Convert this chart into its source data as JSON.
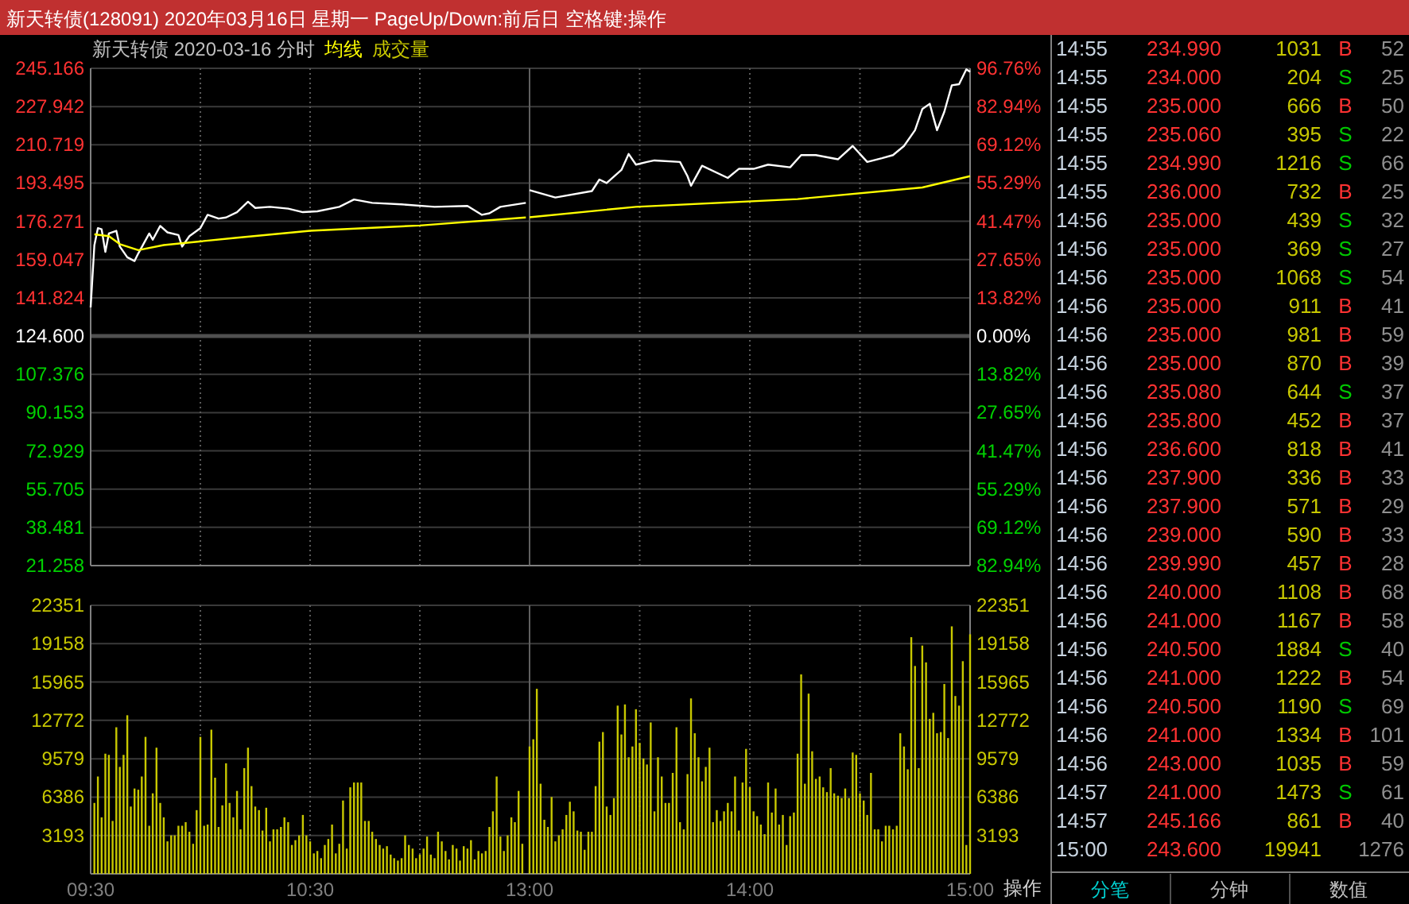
{
  "chart_data": [
    {
      "type": "line",
      "title": "新天转债(128091) 2020年03月16日 星期一 PageUp/Down:前后日 空格键:操作",
      "subtitle": "新天转债  2020-03-16 分时",
      "legend": "top right",
      "grid": true,
      "tick_labels": "y",
      "xlim": [
        9.5,
        11.5
      ],
      "xticks": [
        9.5,
        10,
        10.5,
        11
      ],
      "ylim": [
        21.258,
        245.166
      ],
      "yticks": [
        245.166,
        227.942,
        210.719,
        193.495,
        176.271,
        159.047,
        141.824,
        {
          "value": 124.6,
          "label": "124.600"
        },
        107.376,
        90.153,
        72.929,
        55.705,
        38.481,
        21.258
      ],
      "ref_lines": [
        {
          "axis": "y",
          "value": 124.6
        }
      ],
      "series": [
        {
          "color": "#ffffff",
          "x": [
            9.5,
            9.517,
            9.533,
            9.55,
            9.567,
            9.583,
            9.617,
            9.633,
            9.667,
            9.7,
            9.717,
            9.767,
            9.783,
            9.817,
            9.85,
            9.9,
            9.917,
            9.95,
            10,
            10.033,
            10.083,
            10.117,
            10.167,
            10.217,
            10.25,
            10.317,
            10.4,
            10.467,
            10.533,
            10.633,
            10.7,
            10.783,
            10.917,
            11.067,
            11.217,
            11.283,
            11.317,
            11.367,
            11.483
          ],
          "values": [
            137.5,
            165.5,
            173.2,
            172.7,
            162.5,
            170.8,
            172.0,
            164.9,
            160.1,
            158.4,
            161.8,
            170.8,
            168.0,
            174.2,
            171.3,
            170.1,
            164.9,
            169.6,
            173.2,
            179.2,
            177.5,
            178.0,
            180.4,
            185.1,
            182.3,
            182.8,
            182.0,
            180.4,
            180.8,
            182.8,
            186.1,
            184.6,
            183.9,
            182.8,
            183.2,
            179.2,
            179.9,
            182.8,
            184.6
          ]
        },
        {
          "name": "均线",
          "color": "#ffff00",
          "x": [
            9.517,
            9.583,
            9.633,
            9.717,
            9.833,
            10.167,
            10.5,
            11,
            11.483
          ],
          "values": [
            170.4,
            169.6,
            166.0,
            163.3,
            165.6,
            168.9,
            172.0,
            174.4,
            178.0
          ]
        }
      ]
    },
    {
      "type": "line",
      "grid": true,
      "tick_labels": false,
      "xlim": [
        13,
        15
      ],
      "xticks": [
        13,
        13.5,
        14,
        14.5,
        15
      ],
      "ylim": [
        21.258,
        245.166
      ],
      "yticks": [
        245.166,
        227.942,
        210.719,
        193.495,
        176.271,
        159.047,
        141.824,
        124.6,
        107.376,
        90.153,
        72.929,
        55.705,
        38.481,
        21.258
      ],
      "y2lim": [
        -82.94,
        96.76
      ],
      "y2ticks": [
        {
          "value": 96.76,
          "label": "96.76%"
        },
        {
          "value": 82.94,
          "label": "82.94%"
        },
        {
          "value": 69.12,
          "label": "69.12%"
        },
        {
          "value": 55.29,
          "label": "55.29%"
        },
        {
          "value": 41.47,
          "label": "41.47%"
        },
        {
          "value": 27.65,
          "label": "27.65%"
        },
        {
          "value": 13.82,
          "label": "13.82%"
        },
        {
          "value": 0,
          "label": "0.00%"
        },
        {
          "value": -13.82,
          "label": "13.82%"
        },
        {
          "value": -27.65,
          "label": "27.65%"
        },
        {
          "value": -41.47,
          "label": "41.47%"
        },
        {
          "value": -55.29,
          "label": "55.29%"
        },
        {
          "value": -69.12,
          "label": "69.12%"
        },
        {
          "value": -82.94,
          "label": "82.94%"
        }
      ],
      "ref_lines": [
        {
          "axis": "y",
          "value": 124.6
        }
      ],
      "series": [
        {
          "color": "#ffffff",
          "x": [
            13,
            13.117,
            13.283,
            13.317,
            13.35,
            13.417,
            13.45,
            13.483,
            13.533,
            13.567,
            13.683,
            13.717,
            13.733,
            13.783,
            13.9,
            13.95,
            14.017,
            14.083,
            14.183,
            14.233,
            14.3,
            14.4,
            14.467,
            14.533,
            14.6,
            14.65,
            14.7,
            14.75,
            14.783,
            14.817,
            14.833,
            14.85,
            14.883,
            14.917,
            14.95,
            14.983,
            15
          ],
          "values": [
            190.3,
            187.0,
            189.9,
            195.1,
            193.5,
            199.4,
            206.6,
            201.8,
            203.0,
            203.7,
            203.0,
            196.6,
            192.3,
            201.3,
            195.8,
            199.9,
            199.9,
            201.8,
            200.6,
            206.1,
            206.1,
            204.2,
            210.2,
            203.0,
            204.7,
            206.1,
            210.2,
            217.3,
            226.8,
            229.2,
            223.3,
            217.3,
            225.6,
            237.5,
            238.0,
            244.7,
            243.6
          ]
        },
        {
          "color": "#ffff00",
          "x": [
            13,
            13.483,
            14.217,
            14.783,
            15
          ],
          "values": [
            178.1,
            182.8,
            186.3,
            191.5,
            196.6
          ]
        }
      ]
    },
    {
      "type": "bar",
      "legend": "top right",
      "grid": true,
      "xlim": [
        9.5,
        11.5
      ],
      "xticks": [
        {
          "value": 9.5,
          "label": "09:30"
        },
        {
          "value": 10,
          "label": null
        },
        {
          "value": 10.5,
          "label": "10:30"
        },
        {
          "value": 11,
          "label": null
        }
      ],
      "ylim": [
        0,
        22351
      ],
      "yticks": [
        3193,
        6386,
        9579,
        12772,
        15965,
        19158,
        22351
      ],
      "series": [
        {
          "name": "成交量",
          "color": "#c8c800",
          "x": [
            9.517,
            9.533,
            9.55,
            9.567,
            9.583,
            9.6,
            9.617,
            9.633,
            9.65,
            9.667,
            9.683,
            9.7,
            9.717,
            9.733,
            9.75,
            9.767,
            9.783,
            9.8,
            9.817,
            9.833,
            9.85,
            9.867,
            9.883,
            9.9,
            9.917,
            9.933,
            9.95,
            9.967,
            9.983,
            10,
            10.017,
            10.033,
            10.05,
            10.067,
            10.083,
            10.1,
            10.117,
            10.133,
            10.15,
            10.167,
            10.183,
            10.2,
            10.217,
            10.233,
            10.25,
            10.267,
            10.283,
            10.3,
            10.317,
            10.333,
            10.35,
            10.367,
            10.383,
            10.4,
            10.417,
            10.433,
            10.45,
            10.467,
            10.483,
            10.5,
            10.517,
            10.533,
            10.55,
            10.567,
            10.583,
            10.6,
            10.617,
            10.633,
            10.65,
            10.667,
            10.683,
            10.7,
            10.717,
            10.733,
            10.75,
            10.767,
            10.783,
            10.8,
            10.817,
            10.833,
            10.85,
            10.867,
            10.883,
            10.9,
            10.917,
            10.933,
            10.95,
            10.967,
            10.983,
            11,
            11.017,
            11.033,
            11.05,
            11.067,
            11.083,
            11.1,
            11.117,
            11.133,
            11.15,
            11.167,
            11.183,
            11.2,
            11.217,
            11.233,
            11.25,
            11.267,
            11.283,
            11.3,
            11.317,
            11.333,
            11.35,
            11.367,
            11.383,
            11.4,
            11.417,
            11.433,
            11.45,
            11.467
          ],
          "values": [
            5900,
            8100,
            4700,
            10000,
            9900,
            4400,
            12200,
            8900,
            9900,
            13200,
            5600,
            7100,
            7000,
            8100,
            11400,
            4000,
            6700,
            10500,
            5900,
            4700,
            2700,
            3200,
            3200,
            4000,
            4000,
            4300,
            3500,
            2500,
            5300,
            11400,
            4000,
            4100,
            12000,
            8000,
            3900,
            5700,
            9200,
            5900,
            4700,
            6900,
            3700,
            8800,
            10500,
            7300,
            5600,
            5300,
            3600,
            5500,
            2700,
            3700,
            3700,
            3900,
            4700,
            4300,
            2400,
            2800,
            3200,
            4900,
            3200,
            2700,
            1700,
            1900,
            1300,
            2400,
            2900,
            4100,
            1700,
            2500,
            6100,
            2100,
            7200,
            7600,
            7600,
            7600,
            4400,
            4400,
            3500,
            2900,
            2400,
            2100,
            2300,
            1600,
            1300,
            1100,
            1300,
            3200,
            2400,
            2100,
            1300,
            1600,
            2100,
            3100,
            1600,
            1300,
            3500,
            2700,
            1900,
            1200,
            2400,
            2100,
            1100,
            2300,
            2100,
            2800,
            1200,
            1900,
            1700,
            1900,
            3900,
            5200,
            8100,
            3100,
            1900,
            3200,
            4700,
            4300,
            6900,
            2500
          ]
        }
      ]
    },
    {
      "type": "bar",
      "grid": true,
      "annotations": [
        "操作"
      ],
      "xlim": [
        13,
        15
      ],
      "xticks": [
        {
          "value": 13,
          "label": "13:00"
        },
        {
          "value": 13.5,
          "label": null
        },
        {
          "value": 14,
          "label": "14:00"
        },
        {
          "value": 14.5,
          "label": null
        },
        {
          "value": 15,
          "label": "15:00"
        }
      ],
      "y2lim": [
        0,
        22351
      ],
      "y2ticks": [
        3193,
        6386,
        9579,
        12772,
        15965,
        19158,
        22351
      ],
      "series": [
        {
          "color": "#c8c800",
          "axis": "y2",
          "x": [
            13,
            13.017,
            13.033,
            13.05,
            13.067,
            13.083,
            13.1,
            13.117,
            13.133,
            13.15,
            13.167,
            13.183,
            13.2,
            13.217,
            13.233,
            13.25,
            13.267,
            13.283,
            13.3,
            13.317,
            13.333,
            13.35,
            13.367,
            13.383,
            13.4,
            13.417,
            13.433,
            13.45,
            13.467,
            13.483,
            13.5,
            13.517,
            13.533,
            13.55,
            13.567,
            13.583,
            13.6,
            13.617,
            13.633,
            13.65,
            13.667,
            13.683,
            13.7,
            13.717,
            13.733,
            13.75,
            13.767,
            13.783,
            13.8,
            13.817,
            13.833,
            13.85,
            13.867,
            13.883,
            13.9,
            13.917,
            13.933,
            13.95,
            13.967,
            13.983,
            14,
            14.017,
            14.033,
            14.05,
            14.067,
            14.083,
            14.1,
            14.117,
            14.133,
            14.15,
            14.167,
            14.183,
            14.2,
            14.217,
            14.233,
            14.25,
            14.267,
            14.283,
            14.3,
            14.317,
            14.333,
            14.35,
            14.367,
            14.383,
            14.4,
            14.417,
            14.433,
            14.45,
            14.467,
            14.483,
            14.5,
            14.517,
            14.533,
            14.55,
            14.567,
            14.583,
            14.6,
            14.617,
            14.633,
            14.65,
            14.667,
            14.683,
            14.7,
            14.717,
            14.733,
            14.75,
            14.767,
            14.783,
            14.8,
            14.817,
            14.833,
            14.85,
            14.867,
            14.883,
            14.9,
            14.917,
            14.933,
            14.95,
            14.967,
            14.983,
            15
          ],
          "values": [
            10600,
            11200,
            15400,
            7500,
            4500,
            3900,
            6400,
            2700,
            3200,
            3700,
            4900,
            6000,
            5200,
            3600,
            3500,
            2000,
            3500,
            3500,
            7300,
            11000,
            11800,
            5600,
            4900,
            6300,
            14000,
            11600,
            14100,
            9700,
            10600,
            13700,
            10900,
            9600,
            9100,
            12600,
            5200,
            9700,
            8100,
            5900,
            5900,
            8400,
            12200,
            4300,
            3700,
            8300,
            14600,
            11700,
            9700,
            7700,
            8900,
            10500,
            4300,
            5300,
            4400,
            5200,
            5900,
            5200,
            8100,
            3600,
            7600,
            10400,
            7200,
            5200,
            4800,
            4100,
            3300,
            7600,
            5100,
            7100,
            4100,
            4900,
            2400,
            4800,
            5100,
            10000,
            16600,
            7500,
            15000,
            10200,
            7900,
            8100,
            7200,
            6800,
            8800,
            6700,
            6500,
            6300,
            7100,
            6300,
            10100,
            9900,
            6700,
            6100,
            4900,
            8400,
            3700,
            3700,
            2700,
            4000,
            4000,
            3700,
            4000,
            11700,
            10600,
            8700,
            19700,
            17300,
            8800,
            19000,
            17600,
            12900,
            13400,
            11700,
            11800,
            15800,
            11300,
            20600,
            14800,
            14000,
            17700,
            2400,
            19941
          ]
        }
      ]
    },
    {
      "type": "other",
      "annotations": [
        "14:55 234.990 1031 B 52",
        "14:55 234.000 204 S 25",
        "14:55 235.000 666 B 50",
        "14:55 235.060 395 S 22",
        "14:55 234.990 1216 S 66",
        "14:55 236.000 732 B 25",
        "14:56 235.000 439 S 32",
        "14:56 235.000 369 S 27",
        "14:56 235.000 1068 S 54",
        "14:56 235.000 911 B 41",
        "14:56 235.000 981 B 59",
        "14:56 235.000 870 B 39",
        "14:56 235.080 644 S 37",
        "14:56 235.800 452 B 37",
        "14:56 236.600 818 B 41",
        "14:56 237.900 336 B 33",
        "14:56 237.900 571 B 29",
        "14:56 239.000 590 B 33",
        "14:56 239.990 457 B 28",
        "14:56 240.000 1108 B 68",
        "14:56 241.000 1167 B 58",
        "14:56 240.500 1884 S 40",
        "14:56 241.000 1222 B 54",
        "14:56 240.500 1190 S 69",
        "14:56 241.000 1334 B 101",
        "14:56 243.000 1035 B 59",
        "14:57 241.000 1473 S 61",
        "14:57 245.166 861 B 40",
        "15:00 243.600 19941 1276",
        "分笔",
        "分钟",
        "数值"
      ],
      "colors": [
        "#ff3232",
        "#00c800",
        "#ff3232",
        "#00c800",
        "#00c800",
        "#ff3232",
        "#00c800",
        "#00c800",
        "#00c800",
        "#ff3232",
        "#ff3232",
        "#ff3232",
        "#00c800",
        "#ff3232",
        "#ff3232",
        "#ff3232",
        "#ff3232",
        "#ff3232",
        "#ff3232",
        "#ff3232",
        "#ff3232",
        "#00c800",
        "#ff3232",
        "#00c800",
        "#ff3232",
        "#ff3232",
        "#00c800",
        "#ff3232",
        null
      ]
    }
  ]
}
